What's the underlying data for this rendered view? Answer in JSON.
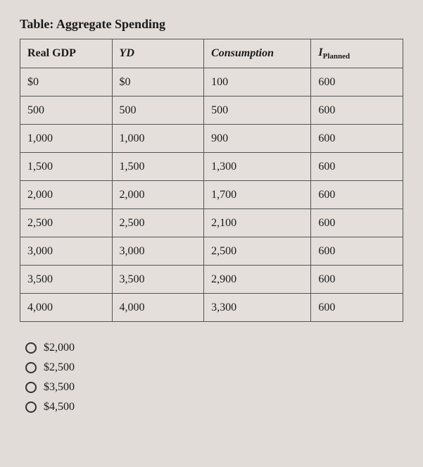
{
  "title": "Table: Aggregate Spending",
  "table": {
    "columns": [
      "Real GDP",
      "YD",
      "Consumption",
      "IPlanned"
    ],
    "col4_base": "I",
    "col4_sub": "Planned",
    "rows": [
      [
        "$0",
        "$0",
        "100",
        "600"
      ],
      [
        "500",
        "500",
        "500",
        "600"
      ],
      [
        "1,000",
        "1,000",
        "900",
        "600"
      ],
      [
        "1,500",
        "1,500",
        "1,300",
        "600"
      ],
      [
        "2,000",
        "2,000",
        "1,700",
        "600"
      ],
      [
        "2,500",
        "2,500",
        "2,100",
        "600"
      ],
      [
        "3,000",
        "3,000",
        "2,500",
        "600"
      ],
      [
        "3,500",
        "3,500",
        "2,900",
        "600"
      ],
      [
        "4,000",
        "4,000",
        "3,300",
        "600"
      ]
    ],
    "col_widths": [
      "24%",
      "24%",
      "28%",
      "24%"
    ]
  },
  "options": [
    "$2,000",
    "$2,500",
    "$3,500",
    "$4,500"
  ],
  "colors": {
    "background": "#e1dcd8",
    "border": "#555555",
    "text": "#1a1a1a"
  }
}
